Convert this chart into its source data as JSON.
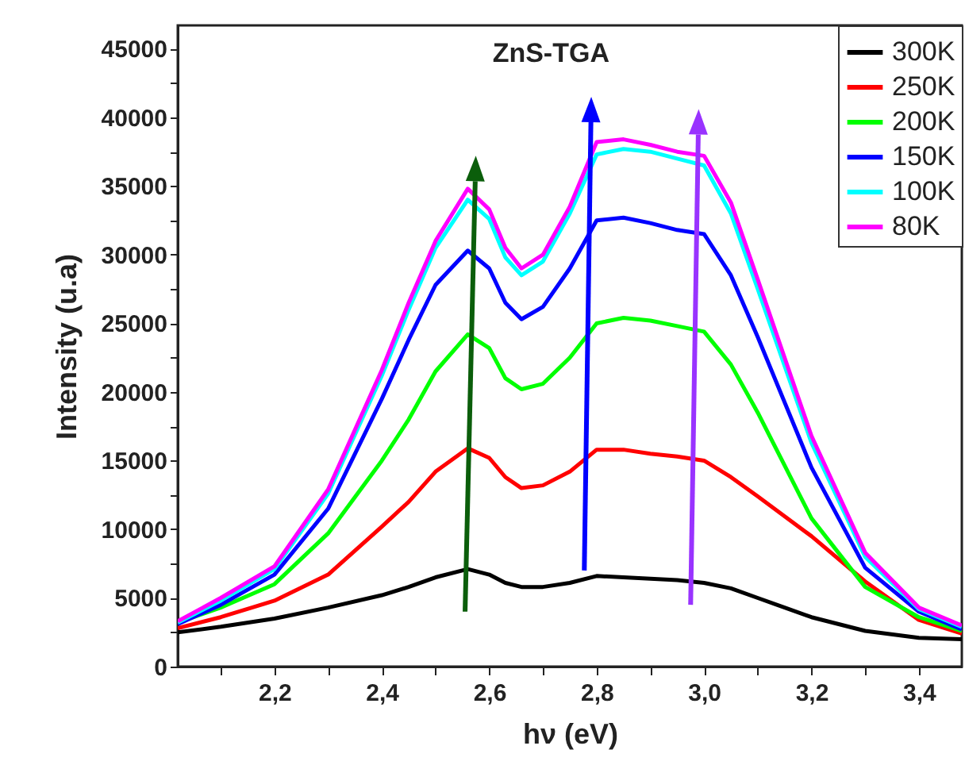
{
  "chart_data": {
    "type": "line",
    "title": "ZnS-TGA",
    "xlabel": "hν (eV)",
    "ylabel": "Intensity (u.a)",
    "x": [
      2.02,
      2.1,
      2.2,
      2.3,
      2.4,
      2.45,
      2.5,
      2.56,
      2.6,
      2.63,
      2.66,
      2.7,
      2.75,
      2.8,
      2.85,
      2.9,
      2.95,
      3.0,
      3.05,
      3.1,
      3.2,
      3.3,
      3.4,
      3.48
    ],
    "series": [
      {
        "name": "300K",
        "color": "#000000",
        "values": [
          2500,
          2900,
          3500,
          4300,
          5200,
          5800,
          6500,
          7100,
          6700,
          6100,
          5800,
          5800,
          6100,
          6600,
          6500,
          6400,
          6300,
          6100,
          5700,
          5000,
          3600,
          2600,
          2100,
          2000
        ]
      },
      {
        "name": "250K",
        "color": "#ff0000",
        "values": [
          2800,
          3600,
          4800,
          6700,
          10200,
          12000,
          14200,
          15900,
          15200,
          13800,
          13000,
          13200,
          14200,
          15800,
          15800,
          15500,
          15300,
          15000,
          13800,
          12400,
          9500,
          6200,
          3400,
          2400
        ]
      },
      {
        "name": "200K",
        "color": "#00ff00",
        "values": [
          3200,
          4300,
          6000,
          9700,
          15000,
          18000,
          21500,
          24200,
          23200,
          21000,
          20200,
          20600,
          22500,
          25000,
          25400,
          25200,
          24800,
          24400,
          22000,
          18500,
          10800,
          5800,
          3600,
          2600
        ]
      },
      {
        "name": "150K",
        "color": "#0000ff",
        "values": [
          3100,
          4500,
          6700,
          11500,
          19500,
          23800,
          27800,
          30300,
          29000,
          26500,
          25300,
          26200,
          29000,
          32500,
          32700,
          32300,
          31800,
          31500,
          28500,
          24000,
          14500,
          7200,
          4000,
          2700
        ]
      },
      {
        "name": "100K",
        "color": "#00ffff",
        "values": [
          3200,
          4800,
          7100,
          12600,
          21200,
          26000,
          30500,
          34000,
          32600,
          29800,
          28500,
          29500,
          33000,
          37300,
          37700,
          37500,
          37000,
          36500,
          33000,
          27500,
          16300,
          8000,
          4200,
          2900
        ]
      },
      {
        "name": "80K",
        "color": "#ff00ff",
        "values": [
          3300,
          5000,
          7300,
          12900,
          21600,
          26500,
          31000,
          34800,
          33300,
          30500,
          29000,
          30000,
          33500,
          38200,
          38400,
          38000,
          37500,
          37200,
          33800,
          28200,
          16800,
          8300,
          4300,
          3000
        ]
      }
    ],
    "xlim": [
      2.02,
      3.48
    ],
    "xticks": [
      {
        "value": 2.1,
        "label": null
      },
      {
        "value": 2.2,
        "label": "2,2"
      },
      {
        "value": 2.3,
        "label": null
      },
      {
        "value": 2.4,
        "label": "2,4"
      },
      {
        "value": 2.5,
        "label": null
      },
      {
        "value": 2.6,
        "label": "2,6"
      },
      {
        "value": 2.7,
        "label": null
      },
      {
        "value": 2.8,
        "label": "2,8"
      },
      {
        "value": 2.9,
        "label": null
      },
      {
        "value": 3.0,
        "label": "3,0"
      },
      {
        "value": 3.1,
        "label": null
      },
      {
        "value": 3.2,
        "label": "3,2"
      },
      {
        "value": 3.3,
        "label": null
      },
      {
        "value": 3.4,
        "label": "3,4"
      }
    ],
    "ylim": [
      0,
      46700
    ],
    "yticks": [
      0,
      {
        "value": 2500,
        "label": null
      },
      5000,
      {
        "value": 7500,
        "label": null
      },
      10000,
      {
        "value": 12500,
        "label": null
      },
      15000,
      {
        "value": 17500,
        "label": null
      },
      20000,
      {
        "value": 22500,
        "label": null
      },
      25000,
      {
        "value": 27500,
        "label": null
      },
      30000,
      {
        "value": 32500,
        "label": null
      },
      35000,
      {
        "value": 37500,
        "label": null
      },
      40000,
      {
        "value": 42500,
        "label": null
      },
      45000
    ],
    "grid": false,
    "legend": "top right",
    "marker": "none",
    "line_style": "solid"
  }
}
